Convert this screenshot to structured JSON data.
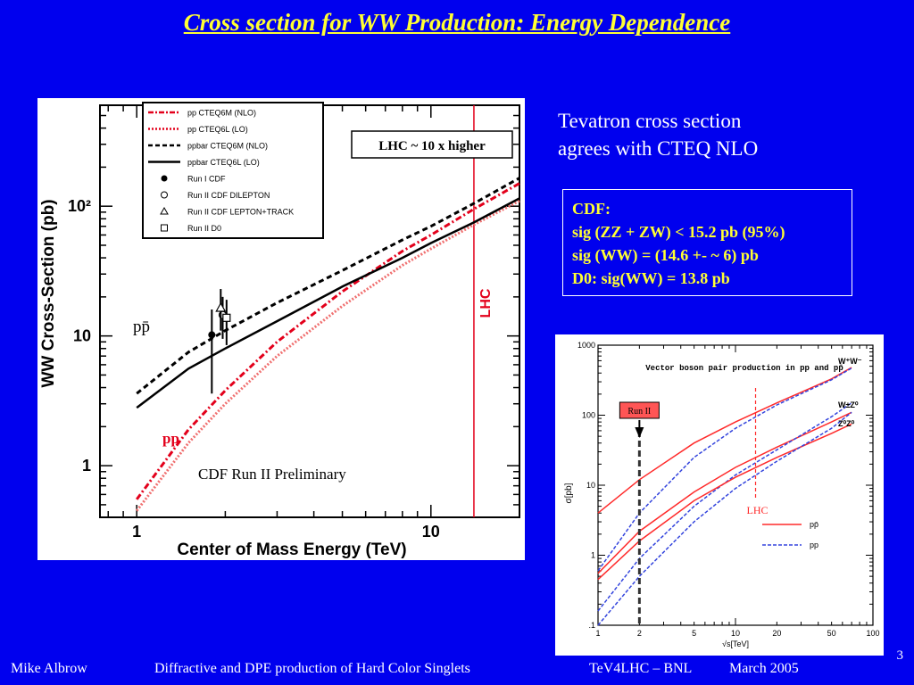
{
  "title": "Cross section for WW Production: Energy Dependence",
  "annotation": {
    "lines": [
      "Tevatron cross section",
      "agrees with CTEQ NLO"
    ]
  },
  "cdf_box": {
    "lines": [
      "CDF:",
      "sig (ZZ + ZW) < 15.2 pb (95%)",
      "sig (WW) = (14.6 +- ~ 6) pb",
      "D0: sig(WW) = 13.8 pb"
    ]
  },
  "footer": {
    "author": "Mike Albrow",
    "talk": "Diffractive and DPE production of Hard Color Singlets",
    "venue": "TeV4LHC – BNL",
    "date": "March 2005",
    "page": "3"
  },
  "chart_data": [
    {
      "type": "line",
      "xscale": "log",
      "yscale": "log",
      "xlabel": "Center of Mass Energy      (TeV)",
      "ylabel": "WW Cross-Section      (pb)",
      "xlim": [
        0.75,
        20
      ],
      "ylim": [
        0.4,
        600
      ],
      "x_ticks": [
        "1",
        "10"
      ],
      "y_ticks": [
        "1",
        "10",
        "10²"
      ],
      "annotations": {
        "preliminary": "CDF Run II Preliminary",
        "lhc_box": "LHC ~ 10 x higher",
        "lhc_line": "LHC",
        "pp_label": "pp",
        "ppbar_label": "pp̄"
      },
      "lhc_energy": 14,
      "legend": [
        {
          "label": "pp CTEQ6M (NLO)",
          "style": "dash-dot",
          "color": "#e3001b"
        },
        {
          "label": "pp CTEQ6L (LO)",
          "style": "dotted",
          "color": "#e3001b"
        },
        {
          "label": "ppbar CTEQ6M (NLO)",
          "style": "dashed",
          "color": "#000000"
        },
        {
          "label": "ppbar CTEQ6L (LO)",
          "style": "solid",
          "color": "#000000"
        },
        {
          "label": "Run I CDF",
          "marker": "filled-circle"
        },
        {
          "label": "Run II CDF DILEPTON",
          "marker": "open-circle"
        },
        {
          "label": "Run II CDF LEPTON+TRACK",
          "marker": "triangle"
        },
        {
          "label": "Run II D0",
          "marker": "square"
        }
      ],
      "series": [
        {
          "name": "pp CTEQ6M (NLO)",
          "x": [
            1,
            1.5,
            2,
            3,
            5,
            8,
            10,
            14,
            20
          ],
          "y": [
            0.55,
            1.9,
            3.8,
            9,
            22,
            45,
            60,
            95,
            150
          ]
        },
        {
          "name": "pp CTEQ6L (LO)",
          "x": [
            1,
            1.5,
            2,
            3,
            5,
            8,
            10,
            14,
            20
          ],
          "y": [
            0.45,
            1.5,
            3.0,
            7,
            17,
            35,
            47,
            72,
            110
          ]
        },
        {
          "name": "ppbar CTEQ6M (NLO)",
          "x": [
            1,
            1.5,
            2,
            3,
            5,
            8,
            10,
            14,
            20
          ],
          "y": [
            3.6,
            7.5,
            11,
            18,
            32,
            55,
            70,
            105,
            165
          ]
        },
        {
          "name": "ppbar CTEQ6L (LO)",
          "x": [
            1,
            1.5,
            2,
            3,
            5,
            8,
            10,
            14,
            20
          ],
          "y": [
            2.8,
            5.6,
            8,
            13,
            24,
            40,
            52,
            75,
            115
          ]
        }
      ],
      "data_points": [
        {
          "name": "Run I CDF",
          "x": 1.8,
          "y": 10.2,
          "ylow": 3.6,
          "yhigh": 16,
          "marker": "filled-circle"
        },
        {
          "name": "Run II CDF DILEPTON",
          "x": 1.96,
          "y": 14.5,
          "ylow": 9.5,
          "yhigh": 20,
          "marker": "open-circle"
        },
        {
          "name": "Run II CDF LEPTON+TRACK",
          "x": 1.93,
          "y": 16.5,
          "ylow": 11,
          "yhigh": 23,
          "marker": "triangle"
        },
        {
          "name": "Run II D0",
          "x": 2.02,
          "y": 13.8,
          "ylow": 8.5,
          "yhigh": 19,
          "marker": "square"
        }
      ]
    },
    {
      "type": "line",
      "xscale": "log",
      "yscale": "log",
      "title": "Vector boson pair production in pp and pp̄",
      "xlabel": "√s[TeV]",
      "ylabel": "σ[pb]",
      "xlim": [
        1,
        100
      ],
      "ylim": [
        0.1,
        1000
      ],
      "x_ticks": [
        "1",
        "2",
        "5",
        "10",
        "20",
        "50",
        "100"
      ],
      "y_ticks": [
        ".1",
        "1",
        "10",
        "100",
        "1000"
      ],
      "run2_label": "Run II",
      "run2_energy": 2,
      "lhc_label": "LHC",
      "lhc_energy": 14,
      "process_labels": [
        "W⁺W⁻",
        "W±Z⁰",
        "Z⁰Z⁰"
      ],
      "legend": [
        {
          "label": "pp̄",
          "color": "#ff2a2a"
        },
        {
          "label": "pp",
          "color": "#3344dd"
        }
      ],
      "series": [
        {
          "name": "W+W- pp̄",
          "color": "#ff2a2a",
          "x": [
            1,
            2,
            5,
            10,
            20,
            50,
            70
          ],
          "y": [
            4,
            12,
            40,
            80,
            150,
            330,
            480
          ]
        },
        {
          "name": "W+W- pp",
          "color": "#3344dd",
          "x": [
            1,
            2,
            5,
            10,
            20,
            50,
            70
          ],
          "y": [
            0.6,
            4,
            25,
            65,
            140,
            320,
            470
          ]
        },
        {
          "name": "W±Z0 pp̄",
          "color": "#ff2a2a",
          "x": [
            1,
            2,
            5,
            10,
            20,
            50,
            70
          ],
          "y": [
            0.55,
            2.2,
            8,
            18,
            35,
            80,
            110
          ]
        },
        {
          "name": "W±Z0 pp",
          "color": "#3344dd",
          "x": [
            1,
            2,
            5,
            10,
            20,
            50,
            70
          ],
          "y": [
            0.16,
            0.9,
            5,
            14,
            32,
            95,
            150
          ]
        },
        {
          "name": "Z0Z0 pp̄",
          "color": "#ff2a2a",
          "x": [
            1,
            2,
            5,
            10,
            20,
            50,
            70
          ],
          "y": [
            0.45,
            1.6,
            6,
            13,
            25,
            55,
            75
          ]
        },
        {
          "name": "Z0Z0 pp",
          "color": "#3344dd",
          "x": [
            1,
            2,
            5,
            10,
            20,
            50,
            70
          ],
          "y": [
            0.1,
            0.5,
            3,
            9,
            22,
            65,
            110
          ]
        }
      ]
    }
  ]
}
